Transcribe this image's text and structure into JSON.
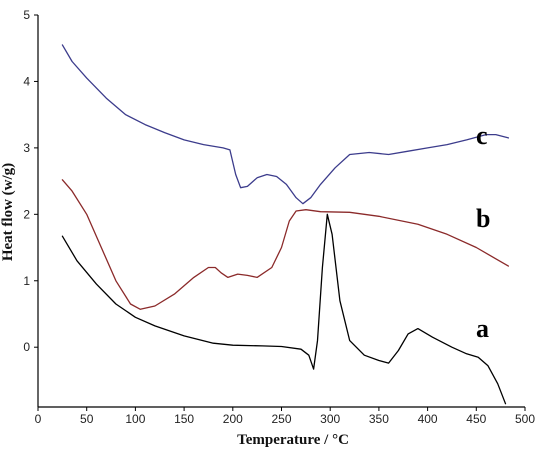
{
  "chart_data": {
    "type": "line",
    "title": "",
    "xlabel": "Temperature / °C",
    "ylabel": "Heat flow (w/g)",
    "xlim": [
      0,
      500
    ],
    "ylim": [
      -0.9,
      5
    ],
    "xticks": [
      0,
      50,
      100,
      150,
      200,
      250,
      300,
      350,
      400,
      450,
      500
    ],
    "yticks": [
      0,
      1,
      2,
      3,
      4,
      5
    ],
    "grid": false,
    "legend": "none",
    "series": [
      {
        "name": "a",
        "color": "#000000",
        "points": [
          [
            25,
            1.67
          ],
          [
            40,
            1.3
          ],
          [
            60,
            0.95
          ],
          [
            80,
            0.65
          ],
          [
            100,
            0.45
          ],
          [
            120,
            0.32
          ],
          [
            150,
            0.17
          ],
          [
            180,
            0.06
          ],
          [
            200,
            0.03
          ],
          [
            230,
            0.02
          ],
          [
            250,
            0.01
          ],
          [
            270,
            -0.03
          ],
          [
            278,
            -0.12
          ],
          [
            283,
            -0.33
          ],
          [
            287,
            0.1
          ],
          [
            292,
            1.2
          ],
          [
            297,
            2.0
          ],
          [
            302,
            1.7
          ],
          [
            310,
            0.7
          ],
          [
            320,
            0.1
          ],
          [
            335,
            -0.12
          ],
          [
            350,
            -0.2
          ],
          [
            360,
            -0.24
          ],
          [
            370,
            -0.05
          ],
          [
            380,
            0.2
          ],
          [
            390,
            0.28
          ],
          [
            405,
            0.15
          ],
          [
            425,
            0.0
          ],
          [
            440,
            -0.1
          ],
          [
            452,
            -0.15
          ],
          [
            462,
            -0.28
          ],
          [
            472,
            -0.55
          ],
          [
            480,
            -0.85
          ]
        ]
      },
      {
        "name": "b",
        "color": "#8b2a2a",
        "points": [
          [
            25,
            2.52
          ],
          [
            35,
            2.35
          ],
          [
            50,
            2.0
          ],
          [
            65,
            1.5
          ],
          [
            80,
            1.0
          ],
          [
            95,
            0.65
          ],
          [
            105,
            0.57
          ],
          [
            120,
            0.62
          ],
          [
            140,
            0.8
          ],
          [
            160,
            1.05
          ],
          [
            175,
            1.2
          ],
          [
            182,
            1.2
          ],
          [
            188,
            1.12
          ],
          [
            195,
            1.05
          ],
          [
            205,
            1.1
          ],
          [
            215,
            1.08
          ],
          [
            225,
            1.05
          ],
          [
            240,
            1.2
          ],
          [
            250,
            1.5
          ],
          [
            258,
            1.9
          ],
          [
            265,
            2.05
          ],
          [
            275,
            2.07
          ],
          [
            290,
            2.04
          ],
          [
            320,
            2.03
          ],
          [
            350,
            1.97
          ],
          [
            390,
            1.85
          ],
          [
            420,
            1.7
          ],
          [
            450,
            1.5
          ],
          [
            470,
            1.33
          ],
          [
            483,
            1.22
          ]
        ]
      },
      {
        "name": "c",
        "color": "#3c3c8c",
        "points": [
          [
            25,
            4.55
          ],
          [
            35,
            4.3
          ],
          [
            50,
            4.05
          ],
          [
            70,
            3.75
          ],
          [
            90,
            3.5
          ],
          [
            110,
            3.35
          ],
          [
            130,
            3.23
          ],
          [
            150,
            3.12
          ],
          [
            170,
            3.05
          ],
          [
            190,
            3.0
          ],
          [
            197,
            2.97
          ],
          [
            203,
            2.6
          ],
          [
            208,
            2.4
          ],
          [
            215,
            2.42
          ],
          [
            225,
            2.55
          ],
          [
            235,
            2.6
          ],
          [
            245,
            2.57
          ],
          [
            255,
            2.45
          ],
          [
            265,
            2.25
          ],
          [
            272,
            2.16
          ],
          [
            280,
            2.25
          ],
          [
            290,
            2.45
          ],
          [
            305,
            2.7
          ],
          [
            320,
            2.9
          ],
          [
            340,
            2.93
          ],
          [
            360,
            2.9
          ],
          [
            380,
            2.95
          ],
          [
            400,
            3.0
          ],
          [
            420,
            3.05
          ],
          [
            440,
            3.12
          ],
          [
            460,
            3.2
          ],
          [
            470,
            3.2
          ],
          [
            483,
            3.15
          ]
        ]
      }
    ]
  }
}
